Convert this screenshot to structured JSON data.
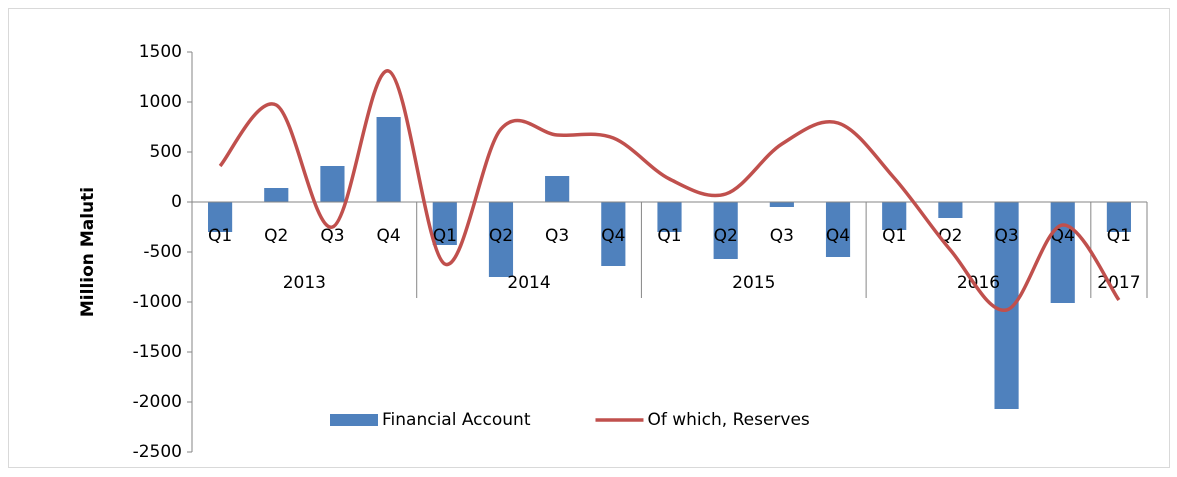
{
  "chart_data": {
    "type": "bar_line",
    "y_label": "Million Maluti",
    "category_groups": [
      {
        "label": "2013",
        "categories": [
          "Q1",
          "Q2",
          "Q3",
          "Q4"
        ]
      },
      {
        "label": "2014",
        "categories": [
          "Q1",
          "Q2",
          "Q3",
          "Q4"
        ]
      },
      {
        "label": "2015",
        "categories": [
          "Q1",
          "Q2",
          "Q3",
          "Q4"
        ]
      },
      {
        "label": "2016",
        "categories": [
          "Q1",
          "Q2",
          "Q3",
          "Q4"
        ]
      },
      {
        "label": "2017",
        "categories": [
          "Q1"
        ]
      }
    ],
    "series": [
      {
        "name": "Financial Account",
        "type": "bar",
        "color": "#4f81bd",
        "values": [
          -300,
          140,
          360,
          850,
          -430,
          -750,
          260,
          -640,
          -300,
          -570,
          -50,
          -550,
          -280,
          -160,
          -2070,
          -1010,
          -300
        ]
      },
      {
        "name": "Of which, Reserves",
        "type": "line",
        "color": "#c0504d",
        "smooth": true,
        "values": [
          360,
          970,
          -250,
          1310,
          -620,
          730,
          670,
          640,
          230,
          80,
          580,
          790,
          240,
          -480,
          -1080,
          -230,
          -980
        ]
      }
    ],
    "ylim": [
      -2500,
      1500
    ],
    "yticks": [
      -2500,
      -2000,
      -1500,
      -1000,
      -500,
      0,
      500,
      1000,
      1500
    ],
    "legend": "bottom"
  }
}
